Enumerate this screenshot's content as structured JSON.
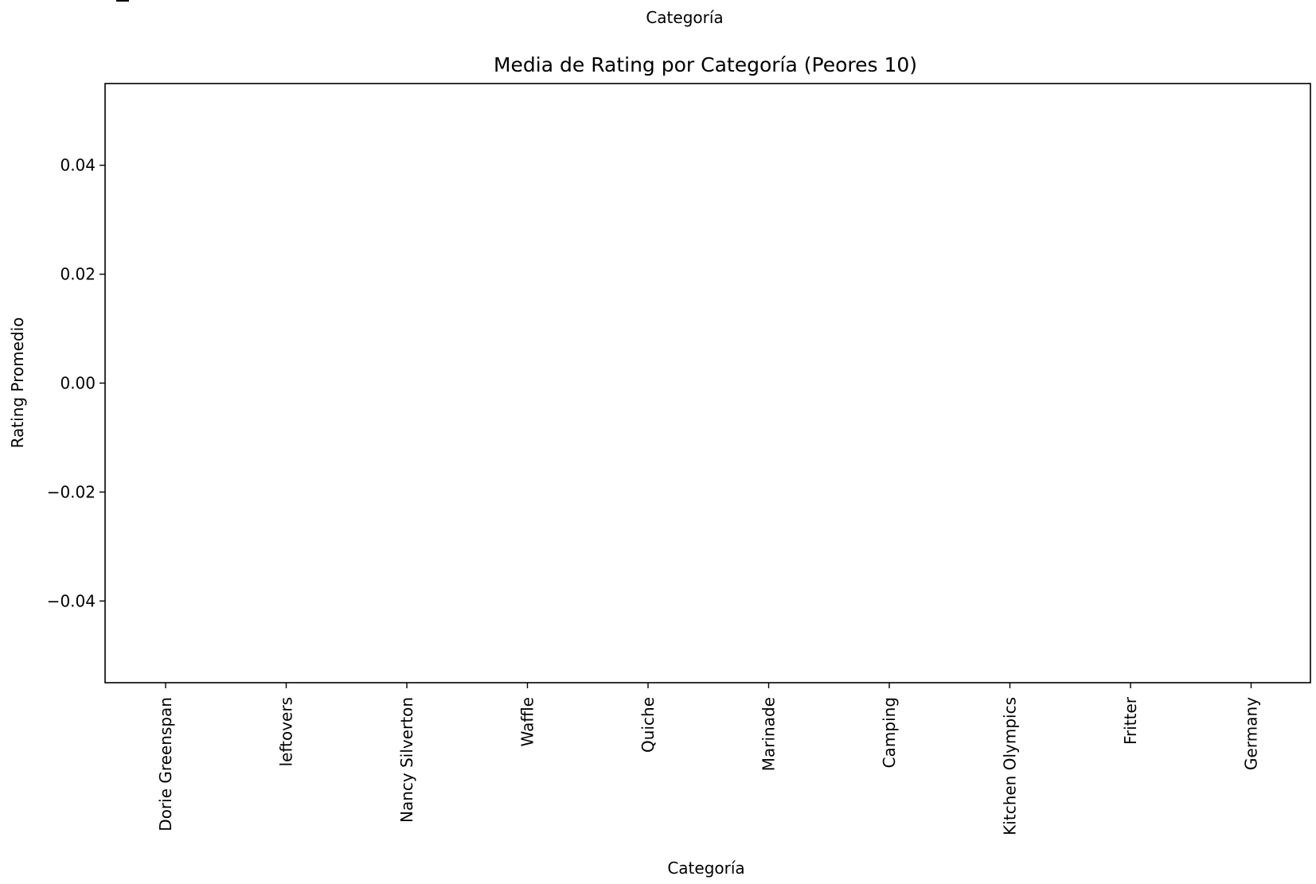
{
  "header_fragment": {
    "label": "Categoría"
  },
  "chart_data": {
    "type": "bar",
    "title": "Media de Rating por Categoría (Peores 10)",
    "xlabel": "Categoría",
    "ylabel": "Rating Promedio",
    "categories": [
      "Dorie Greenspan",
      "leftovers",
      "Nancy Silverton",
      "Waffle",
      "Quiche",
      "Marinade",
      "Camping",
      "Kitchen Olympics",
      "Fritter",
      "Germany"
    ],
    "values": [
      0,
      0,
      0,
      0,
      0,
      0,
      0,
      0,
      0,
      0
    ],
    "ylim": [
      -0.055,
      0.055
    ],
    "yticks": [
      0.04,
      0.02,
      0.0,
      -0.02,
      -0.04
    ],
    "ytick_labels": [
      "0.04",
      "0.02",
      "0.00",
      "−0.02",
      "−0.04"
    ],
    "grid": false,
    "colors": {
      "axes": "#000000",
      "background": "#ffffff"
    }
  }
}
